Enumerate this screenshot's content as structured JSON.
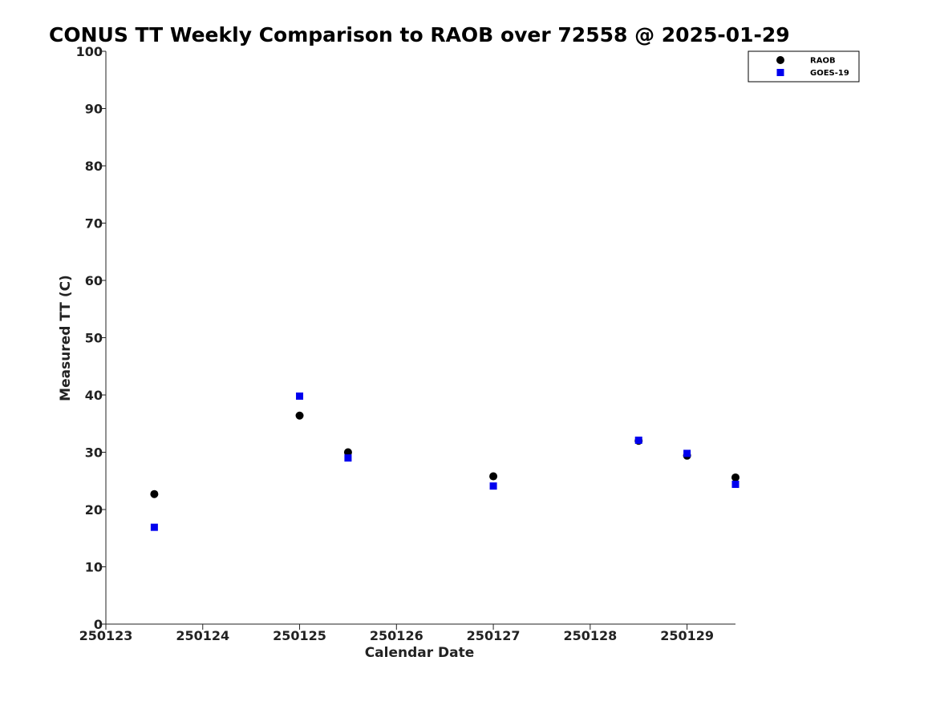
{
  "chart_data": {
    "type": "scatter",
    "title": "CONUS TT Weekly Comparison to RAOB over 72558 @ 2025-01-29",
    "xlabel": "Calendar Date",
    "ylabel": "Measured TT (C)",
    "xlim": [
      250123,
      250129.5
    ],
    "ylim": [
      0,
      100
    ],
    "x_ticks": [
      250123,
      250124,
      250125,
      250126,
      250127,
      250128,
      250129
    ],
    "x_tick_labels": [
      "250123",
      "250124",
      "250125",
      "250126",
      "250127",
      "250128",
      "250129"
    ],
    "y_ticks": [
      0,
      10,
      20,
      30,
      40,
      50,
      60,
      70,
      80,
      90,
      100
    ],
    "grid": false,
    "legend_position": "top-right",
    "series": [
      {
        "name": "RAOB",
        "marker": "circle",
        "color": "#000000",
        "points": [
          {
            "x": 250123.5,
            "y": 22.7
          },
          {
            "x": 250125.0,
            "y": 36.4
          },
          {
            "x": 250125.5,
            "y": 30.0
          },
          {
            "x": 250127.0,
            "y": 25.8
          },
          {
            "x": 250128.5,
            "y": 32.0
          },
          {
            "x": 250129.0,
            "y": 29.4
          },
          {
            "x": 250129.5,
            "y": 25.6
          }
        ]
      },
      {
        "name": "GOES-19",
        "marker": "square",
        "color": "#0000ee",
        "points": [
          {
            "x": 250123.5,
            "y": 16.9
          },
          {
            "x": 250125.0,
            "y": 39.8
          },
          {
            "x": 250125.5,
            "y": 29.0
          },
          {
            "x": 250127.0,
            "y": 24.1
          },
          {
            "x": 250128.5,
            "y": 32.1
          },
          {
            "x": 250129.0,
            "y": 29.8
          },
          {
            "x": 250129.5,
            "y": 24.4
          }
        ]
      }
    ]
  }
}
